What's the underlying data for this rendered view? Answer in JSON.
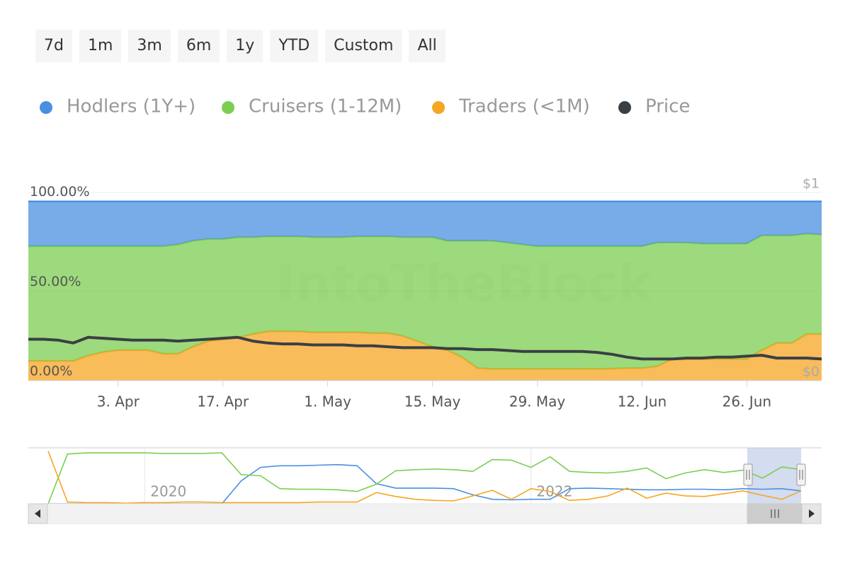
{
  "range_buttons": [
    "7d",
    "1m",
    "3m",
    "6m",
    "1y",
    "YTD",
    "Custom",
    "All"
  ],
  "chart_data": {
    "type": "area",
    "stacked": true,
    "watermark": "IntoTheBlock",
    "categories": [
      null,
      null,
      null,
      null,
      null,
      null,
      "3. Apr",
      null,
      null,
      null,
      null,
      null,
      null,
      "17. Apr",
      null,
      null,
      null,
      null,
      null,
      null,
      "1. May",
      null,
      null,
      null,
      null,
      null,
      null,
      "15. May",
      null,
      null,
      null,
      null,
      null,
      null,
      "29. May",
      null,
      null,
      null,
      null,
      null,
      null,
      "12. Jun",
      null,
      null,
      null,
      null,
      null,
      null,
      "26. Jun",
      null,
      null,
      null,
      null,
      null
    ],
    "ylim": [
      0,
      105
    ],
    "yticks": [
      {
        "value": 0,
        "label": "0.00%"
      },
      {
        "value": 50,
        "label": "50.00%"
      },
      {
        "value": 100,
        "label": "100.00%"
      }
    ],
    "y2lim": [
      0,
      1
    ],
    "y2ticks": [
      {
        "value": 0,
        "label": "$0"
      },
      {
        "value": 1,
        "label": "$1"
      }
    ],
    "series": [
      {
        "name": "Hodlers (1Y+)",
        "color": "#4a90e2",
        "values": [
          25,
          25,
          25,
          25,
          25,
          25,
          25,
          25,
          25,
          25,
          24,
          22,
          21,
          21,
          20,
          20,
          19.5,
          19.5,
          19.5,
          20,
          20,
          20,
          19.5,
          19.5,
          19.5,
          20,
          20,
          20,
          22,
          22,
          22,
          22,
          23,
          24,
          25,
          25,
          25,
          25,
          25,
          25,
          25,
          25,
          23,
          23,
          23,
          23.5,
          23.5,
          23.5,
          23.5,
          19,
          19,
          19,
          18,
          18.5
        ]
      },
      {
        "name": "Cruisers (1-12M)",
        "color": "#7cce52",
        "values": [
          64,
          64,
          64,
          64,
          61,
          59,
          58,
          58,
          58,
          60,
          61,
          59,
          57,
          56,
          56,
          54,
          53,
          53,
          53,
          53,
          53,
          53,
          53.5,
          54,
          54,
          55,
          58,
          61,
          61,
          65,
          71,
          71.5,
          70.5,
          69.5,
          68.5,
          68.5,
          68.5,
          68.5,
          68.5,
          68.3,
          68,
          68,
          69,
          65,
          65,
          64.5,
          64.5,
          64.5,
          64.5,
          64,
          60,
          60,
          56,
          55.5
        ]
      },
      {
        "name": "Traders (<1M)",
        "color": "#f5a623",
        "values": [
          11,
          11,
          11,
          11,
          14,
          16,
          17,
          17,
          17,
          15,
          15,
          19,
          22,
          23,
          24,
          26,
          27.5,
          27.5,
          27.5,
          27,
          27,
          27,
          27,
          26.5,
          26.5,
          25,
          22,
          19,
          17,
          13,
          7,
          6.5,
          6.5,
          6.5,
          6.5,
          6.5,
          6.5,
          6.5,
          6.5,
          6.7,
          7,
          7,
          8,
          12,
          12,
          12,
          12,
          12,
          12,
          17,
          21,
          21,
          26,
          26
        ]
      },
      {
        "name": "Price",
        "color": "#3a3f44",
        "type": "line",
        "axis": "y2",
        "values": [
          0.22,
          0.22,
          0.215,
          0.2,
          0.23,
          0.225,
          0.22,
          0.215,
          0.215,
          0.215,
          0.21,
          0.215,
          0.22,
          0.225,
          0.23,
          0.21,
          0.2,
          0.195,
          0.195,
          0.19,
          0.19,
          0.19,
          0.185,
          0.185,
          0.18,
          0.175,
          0.175,
          0.175,
          0.17,
          0.17,
          0.165,
          0.165,
          0.16,
          0.155,
          0.155,
          0.155,
          0.155,
          0.155,
          0.15,
          0.14,
          0.125,
          0.115,
          0.115,
          0.115,
          0.12,
          0.12,
          0.125,
          0.125,
          0.13,
          0.135,
          0.12,
          0.12,
          0.12,
          0.115
        ]
      }
    ],
    "navigator": {
      "type": "line",
      "categories": [
        null,
        null,
        null,
        null,
        null,
        "2020",
        null,
        null,
        null,
        null,
        null,
        null,
        null,
        null,
        null,
        null,
        null,
        null,
        null,
        null,
        null,
        null,
        null,
        null,
        null,
        "2022",
        null,
        null,
        null,
        null,
        null,
        null,
        null,
        null,
        null,
        null,
        null,
        null,
        null,
        null
      ],
      "ylim": [
        0,
        100
      ],
      "series": [
        {
          "color": "#4a90e2",
          "values": [
            0,
            0,
            0,
            0,
            0,
            0,
            0,
            0,
            0,
            0,
            41,
            65,
            68,
            68,
            69,
            70,
            68,
            36,
            28,
            28,
            28,
            27,
            16,
            8,
            7,
            8,
            8,
            27,
            28,
            27,
            26,
            25,
            25,
            26,
            26,
            25,
            27,
            26,
            27,
            23
          ]
        },
        {
          "color": "#7cce52",
          "values": [
            0,
            89,
            91,
            91,
            91,
            91,
            90,
            90,
            90,
            91,
            52,
            50,
            27,
            26,
            26,
            25,
            22,
            35,
            59,
            61,
            62,
            61,
            58,
            79,
            78,
            65,
            84,
            58,
            56,
            55,
            58,
            64,
            45,
            55,
            61,
            56,
            60,
            46,
            66,
            61
          ]
        },
        {
          "color": "#f5a623",
          "values": [
            94,
            3,
            2,
            2,
            1,
            2,
            2,
            3,
            3,
            2,
            2,
            2,
            2,
            2,
            3,
            3,
            3,
            20,
            13,
            8,
            6,
            5,
            14,
            24,
            8,
            27,
            22,
            6,
            8,
            14,
            28,
            10,
            19,
            14,
            13,
            18,
            23,
            15,
            8,
            23
          ]
        }
      ]
    }
  }
}
